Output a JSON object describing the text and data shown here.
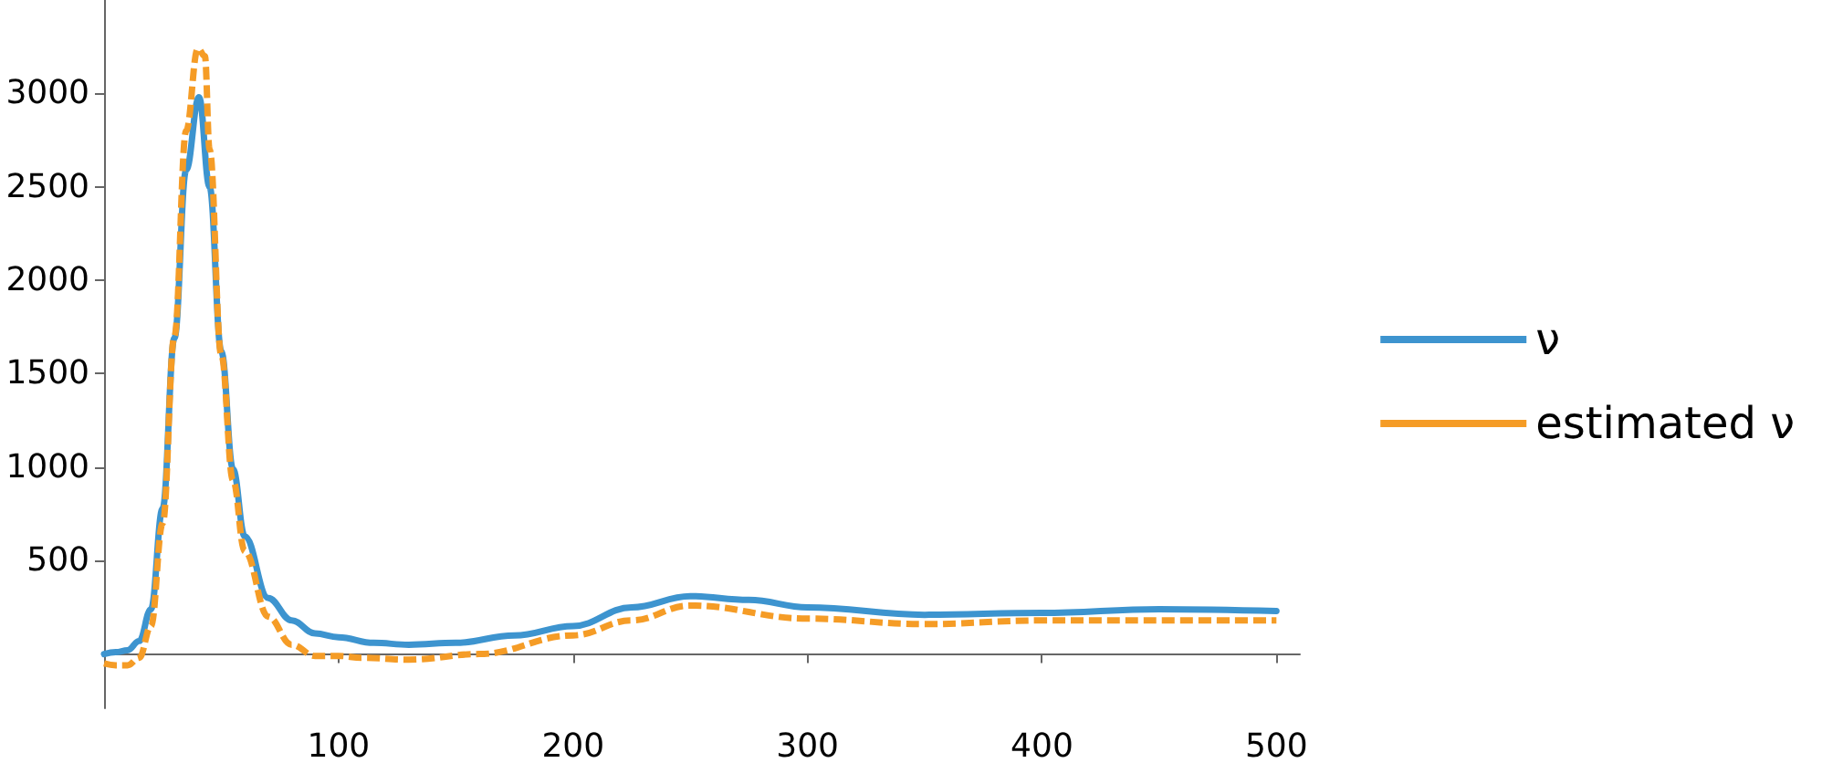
{
  "chart_data": {
    "type": "line",
    "xlim": [
      0,
      510
    ],
    "xticks": [
      100,
      200,
      300,
      400,
      500
    ],
    "ylim": [
      -290,
      3500
    ],
    "yticks": [
      500,
      1000,
      1500,
      2000,
      2500,
      3000
    ],
    "grid": false,
    "legend": "right",
    "marker": "none",
    "series": [
      {
        "name": "ν",
        "color": "#3d94cf",
        "line_style": "solid",
        "x": [
          0,
          5,
          10,
          15,
          20,
          25,
          30,
          35,
          40.5,
          45,
          50,
          55,
          60,
          70,
          80,
          90,
          100,
          115,
          130,
          150,
          175,
          200,
          225,
          250,
          275,
          300,
          350,
          400,
          450,
          500
        ],
        "values": [
          0,
          10,
          20,
          70,
          240,
          780,
          1690,
          2590,
          2980,
          2500,
          1620,
          990,
          630,
          300,
          180,
          110,
          90,
          60,
          50,
          60,
          100,
          150,
          250,
          310,
          290,
          250,
          210,
          220,
          240,
          230
        ]
      },
      {
        "name": "estimated ν",
        "color": "#f59c26",
        "line_style": "dashed",
        "x": [
          0,
          5,
          10,
          15,
          20,
          25,
          30,
          35,
          40,
          43,
          45,
          50,
          55,
          60,
          70,
          80,
          90,
          100,
          110,
          130,
          160,
          200,
          225,
          250,
          300,
          350,
          400,
          450,
          500
        ],
        "values": [
          -50,
          -60,
          -60,
          -20,
          150,
          700,
          1700,
          2800,
          3240,
          3200,
          2700,
          1600,
          930,
          550,
          200,
          50,
          -10,
          -10,
          -20,
          -30,
          0,
          100,
          180,
          260,
          190,
          160,
          180,
          180,
          180
        ]
      }
    ]
  }
}
